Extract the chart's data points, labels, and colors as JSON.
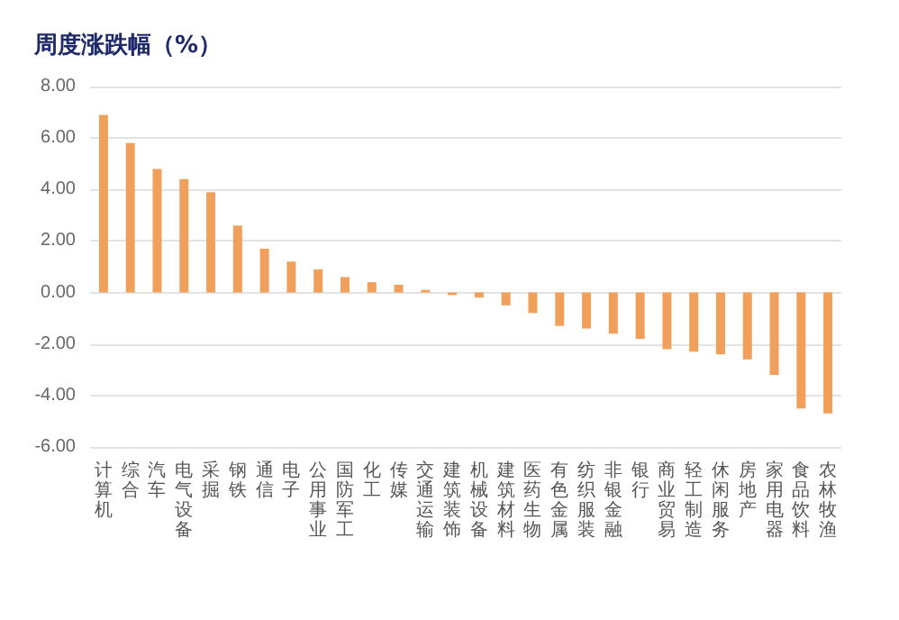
{
  "chart_data": {
    "type": "bar",
    "title": "周度涨跌幅（%）",
    "categories": [
      "计算机",
      "综合",
      "汽车",
      "电气设备",
      "采掘",
      "钢铁",
      "通信",
      "电子",
      "公用事业",
      "国防军工",
      "化工",
      "传媒",
      "交通运输",
      "建筑装饰",
      "机械设备",
      "建筑材料",
      "医药生物",
      "有色金属",
      "纺织服装",
      "非银金融",
      "银行",
      "商业贸易",
      "轻工制造",
      "休闲服务",
      "房地产",
      "家用电器",
      "食品饮料",
      "农林牧渔"
    ],
    "values": [
      6.9,
      5.8,
      4.8,
      4.4,
      3.9,
      2.6,
      1.7,
      1.2,
      0.9,
      0.6,
      0.4,
      0.3,
      0.1,
      -0.1,
      -0.2,
      -0.5,
      -0.8,
      -1.3,
      -1.4,
      -1.6,
      -1.8,
      -2.2,
      -2.3,
      -2.4,
      -2.6,
      -3.2,
      -4.5,
      -4.7
    ],
    "color": "#f0a05a",
    "ylim": [
      -6,
      8
    ],
    "yticks": [
      {
        "value": -6,
        "label": "-6.00"
      },
      {
        "value": -4,
        "label": "-4.00"
      },
      {
        "value": -2,
        "label": "-2.00"
      },
      {
        "value": 0,
        "label": "0.00"
      },
      {
        "value": 2,
        "label": "2.00"
      },
      {
        "value": 4,
        "label": "4.00"
      },
      {
        "value": 6,
        "label": "6.00"
      },
      {
        "value": 8,
        "label": "8.00"
      }
    ],
    "grid": "y"
  }
}
